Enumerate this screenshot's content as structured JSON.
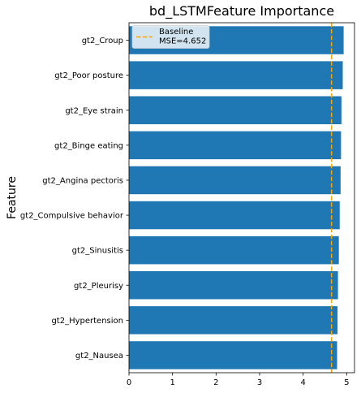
{
  "chart_data": {
    "type": "bar",
    "orientation": "horizontal",
    "title": "bd_LSTMFeature Importance",
    "xlabel": "",
    "ylabel": "Feature",
    "categories": [
      "gt2_Croup",
      "gt2_Poor posture",
      "gt2_Eye strain",
      "gt2_Binge eating",
      "gt2_Angina pectoris",
      "gt2_Compulsive behavior",
      "gt2_Sinusitis",
      "gt2_Pleurisy",
      "gt2_Hypertension",
      "gt2_Nausea"
    ],
    "values": [
      4.93,
      4.91,
      4.88,
      4.87,
      4.86,
      4.84,
      4.82,
      4.8,
      4.79,
      4.78
    ],
    "xlim": [
      0,
      5.18
    ],
    "xticks": [
      0,
      1,
      2,
      3,
      4,
      5
    ],
    "baseline": {
      "value": 4.652,
      "label_line1": "Baseline",
      "label_line2": "MSE=4.652",
      "color": "#ffa500"
    },
    "bar_color": "#1f77b4",
    "legend_position": "top-left",
    "grid": false
  }
}
